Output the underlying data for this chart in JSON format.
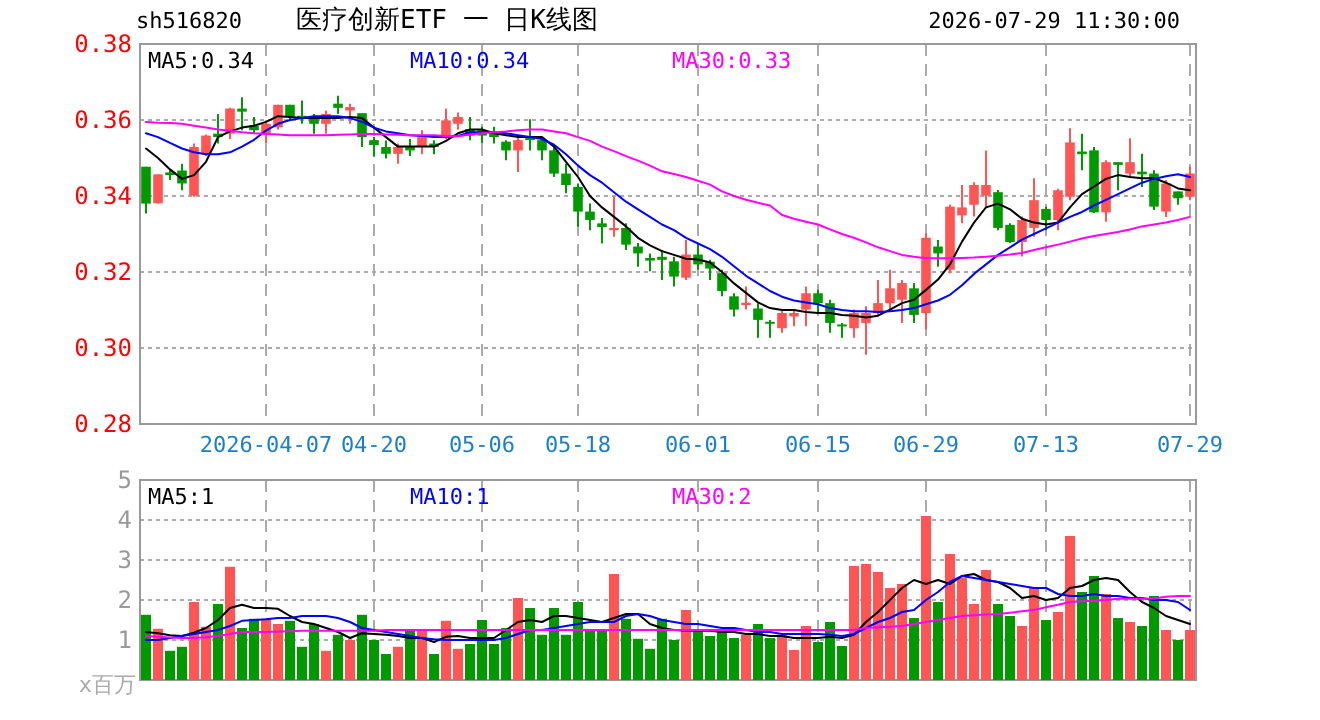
{
  "chart_data": [
    {
      "type": "candlestick",
      "title": "医疗创新ETF 一 日K线图",
      "annotations": [
        "sh516820",
        "2026-07-29 11:30:00"
      ],
      "categories": [
        null,
        null,
        null,
        null,
        null,
        null,
        null,
        null,
        null,
        null,
        "2026-04-07",
        null,
        null,
        null,
        null,
        null,
        null,
        null,
        null,
        "04-20",
        null,
        null,
        null,
        null,
        null,
        null,
        null,
        null,
        "05-06",
        null,
        null,
        null,
        null,
        null,
        null,
        null,
        "05-18",
        null,
        null,
        null,
        null,
        null,
        null,
        null,
        null,
        null,
        "06-01",
        null,
        null,
        null,
        null,
        null,
        null,
        null,
        null,
        null,
        "06-15",
        null,
        null,
        null,
        null,
        null,
        null,
        null,
        null,
        "06-29",
        null,
        null,
        null,
        null,
        null,
        null,
        null,
        null,
        null,
        "07-13",
        null,
        null,
        null,
        null,
        null,
        null,
        null,
        null,
        null,
        null,
        null,
        "07-29"
      ],
      "ohlc": [
        [
          0.3477,
          0.3477,
          0.3354,
          0.338
        ],
        [
          0.3381,
          0.3457,
          0.338,
          0.3457
        ],
        [
          0.3462,
          0.3469,
          0.3442,
          0.3455
        ],
        [
          0.3467,
          0.3485,
          0.3415,
          0.3433
        ],
        [
          0.3401,
          0.3538,
          0.3398,
          0.3529
        ],
        [
          0.3511,
          0.3562,
          0.3505,
          0.3559
        ],
        [
          0.3564,
          0.3616,
          0.3538,
          0.3555
        ],
        [
          0.3564,
          0.3632,
          0.355,
          0.363
        ],
        [
          0.363,
          0.366,
          0.3573,
          0.3622
        ],
        [
          0.3585,
          0.3608,
          0.3564,
          0.3573
        ],
        [
          0.3564,
          0.3599,
          0.3538,
          0.359
        ],
        [
          0.3581,
          0.364,
          0.3575,
          0.364
        ],
        [
          0.364,
          0.364,
          0.36,
          0.3608
        ],
        [
          0.3611,
          0.3651,
          0.359,
          0.3603
        ],
        [
          0.3608,
          0.3616,
          0.3564,
          0.359
        ],
        [
          0.359,
          0.3625,
          0.3564,
          0.3616
        ],
        [
          0.3643,
          0.3664,
          0.3616,
          0.3632
        ],
        [
          0.3625,
          0.3643,
          0.359,
          0.3634
        ],
        [
          0.3618,
          0.3618,
          0.3529,
          0.3555
        ],
        [
          0.3547,
          0.3555,
          0.3503,
          0.3534
        ],
        [
          0.3529,
          0.3546,
          0.3499,
          0.3511
        ],
        [
          0.3511,
          0.3538,
          0.3485,
          0.3529
        ],
        [
          0.3529,
          0.355,
          0.3505,
          0.352
        ],
        [
          0.3529,
          0.3573,
          0.351,
          0.3555
        ],
        [
          0.3538,
          0.3547,
          0.351,
          0.3529
        ],
        [
          0.3555,
          0.363,
          0.355,
          0.3599
        ],
        [
          0.359,
          0.362,
          0.3575,
          0.3608
        ],
        [
          0.3576,
          0.3608,
          0.3547,
          0.3559
        ],
        [
          0.3573,
          0.3582,
          0.3538,
          0.3559
        ],
        [
          0.3569,
          0.3582,
          0.3538,
          0.3555
        ],
        [
          0.3543,
          0.3547,
          0.3494,
          0.352
        ],
        [
          0.352,
          0.3555,
          0.3463,
          0.3547
        ],
        [
          0.3555,
          0.3602,
          0.352,
          0.3547
        ],
        [
          0.3547,
          0.3555,
          0.3494,
          0.352
        ],
        [
          0.352,
          0.3529,
          0.345,
          0.3459
        ],
        [
          0.3459,
          0.3485,
          0.3407,
          0.3429
        ],
        [
          0.3424,
          0.3433,
          0.3319,
          0.3359
        ],
        [
          0.3359,
          0.338,
          0.331,
          0.3337
        ],
        [
          0.3328,
          0.3342,
          0.3275,
          0.3318
        ],
        [
          0.331,
          0.3398,
          0.3293,
          0.3316
        ],
        [
          0.3316,
          0.3328,
          0.3258,
          0.3272
        ],
        [
          0.3267,
          0.3276,
          0.3214,
          0.3249
        ],
        [
          0.3237,
          0.3249,
          0.3202,
          0.323
        ],
        [
          0.324,
          0.3258,
          0.3179,
          0.3232
        ],
        [
          0.3228,
          0.324,
          0.3162,
          0.3188
        ],
        [
          0.3185,
          0.3284,
          0.3179,
          0.3246
        ],
        [
          0.3246,
          0.3276,
          0.3206,
          0.322
        ],
        [
          0.3227,
          0.3232,
          0.3179,
          0.3209
        ],
        [
          0.3197,
          0.3206,
          0.3136,
          0.315
        ],
        [
          0.3136,
          0.3144,
          0.3083,
          0.3101
        ],
        [
          0.3113,
          0.3162,
          0.3101,
          0.3119
        ],
        [
          0.3104,
          0.3118,
          0.3027,
          0.3074
        ],
        [
          0.3069,
          0.3074,
          0.3027,
          0.3066
        ],
        [
          0.3052,
          0.3101,
          0.304,
          0.3092
        ],
        [
          0.3083,
          0.3101,
          0.3057,
          0.3092
        ],
        [
          0.3101,
          0.3162,
          0.3057,
          0.3144
        ],
        [
          0.3144,
          0.3153,
          0.3092,
          0.3118
        ],
        [
          0.3118,
          0.3127,
          0.304,
          0.3066
        ],
        [
          0.3062,
          0.3066,
          0.3027,
          0.3057
        ],
        [
          0.3052,
          0.3101,
          0.3027,
          0.3092
        ],
        [
          0.3066,
          0.311,
          0.2982,
          0.3092
        ],
        [
          0.3092,
          0.3179,
          0.3083,
          0.3118
        ],
        [
          0.3118,
          0.3206,
          0.3101,
          0.3157
        ],
        [
          0.3127,
          0.3179,
          0.3066,
          0.3171
        ],
        [
          0.3157,
          0.3171,
          0.3066,
          0.3087
        ],
        [
          0.3092,
          0.3302,
          0.3049,
          0.329
        ],
        [
          0.3267,
          0.3284,
          0.3214,
          0.3249
        ],
        [
          0.3206,
          0.3377,
          0.3197,
          0.3372
        ],
        [
          0.3349,
          0.3429,
          0.3328,
          0.337
        ],
        [
          0.3377,
          0.3436,
          0.3346,
          0.3429
        ],
        [
          0.3401,
          0.352,
          0.3372,
          0.3429
        ],
        [
          0.341,
          0.3416,
          0.331,
          0.3316
        ],
        [
          0.3324,
          0.3328,
          0.3276,
          0.3279
        ],
        [
          0.3279,
          0.3346,
          0.3241,
          0.3337
        ],
        [
          0.3316,
          0.3447,
          0.3293,
          0.3389
        ],
        [
          0.3366,
          0.3372,
          0.331,
          0.3337
        ],
        [
          0.3337,
          0.3419,
          0.331,
          0.3415
        ],
        [
          0.3398,
          0.3578,
          0.3389,
          0.3541
        ],
        [
          0.3517,
          0.3564,
          0.3468,
          0.351
        ],
        [
          0.352,
          0.3529,
          0.3355,
          0.3357
        ],
        [
          0.3357,
          0.3494,
          0.3332,
          0.3489
        ],
        [
          0.3489,
          0.3489,
          0.3415,
          0.3482
        ],
        [
          0.3459,
          0.3552,
          0.345,
          0.3489
        ],
        [
          0.3464,
          0.3511,
          0.3424,
          0.3457
        ],
        [
          0.3459,
          0.3468,
          0.3363,
          0.3372
        ],
        [
          0.3359,
          0.3442,
          0.3345,
          0.3433
        ],
        [
          0.3412,
          0.3412,
          0.3377,
          0.3394
        ],
        [
          0.3398,
          0.3477,
          0.3389,
          0.3459
        ]
      ],
      "colors": [
        "#009900",
        "#ff5555",
        "#009900",
        "#009900",
        "#ff5555",
        "#ff5555",
        "#009900",
        "#ff5555",
        "#009900",
        "#009900",
        "#ff5555",
        "#ff5555",
        "#009900",
        "#009900",
        "#009900",
        "#ff5555",
        "#009900",
        "#ff5555",
        "#009900",
        "#009900",
        "#009900",
        "#ff5555",
        "#009900",
        "#ff5555",
        "#009900",
        "#ff5555",
        "#ff5555",
        "#009900",
        "#009900",
        "#009900",
        "#009900",
        "#ff5555",
        "#009900",
        "#009900",
        "#009900",
        "#009900",
        "#009900",
        "#009900",
        "#009900",
        "#ff5555",
        "#009900",
        "#009900",
        "#009900",
        "#009900",
        "#009900",
        "#ff5555",
        "#009900",
        "#009900",
        "#009900",
        "#009900",
        "#ff5555",
        "#009900",
        "#009900",
        "#ff5555",
        "#ff5555",
        "#ff5555",
        "#009900",
        "#009900",
        "#009900",
        "#ff5555",
        "#ff5555",
        "#ff5555",
        "#ff5555",
        "#ff5555",
        "#009900",
        "#ff5555",
        "#009900",
        "#ff5555",
        "#ff5555",
        "#ff5555",
        "#ff5555",
        "#009900",
        "#009900",
        "#ff5555",
        "#ff5555",
        "#009900",
        "#ff5555",
        "#ff5555",
        "#009900",
        "#009900",
        "#ff5555",
        "#009900",
        "#ff5555",
        "#009900",
        "#009900",
        "#ff5555",
        "#009900",
        "#ff5555"
      ],
      "series": [
        {
          "type": "line",
          "name": "MA5:0.34",
          "color": "#000000",
          "values": [
            0.3525,
            0.35,
            0.347,
            0.3445,
            0.3455,
            0.349,
            0.3555,
            0.357,
            0.358,
            0.3585,
            0.3595,
            0.361,
            0.3608,
            0.3605,
            0.3605,
            0.3605,
            0.3605,
            0.3608,
            0.3605,
            0.358,
            0.3555,
            0.353,
            0.353,
            0.353,
            0.353,
            0.3545,
            0.3565,
            0.3575,
            0.3575,
            0.3565,
            0.356,
            0.3555,
            0.3555,
            0.3555,
            0.353,
            0.349,
            0.345,
            0.34,
            0.337,
            0.3345,
            0.332,
            0.329,
            0.327,
            0.3255,
            0.3245,
            0.3235,
            0.3233,
            0.3225,
            0.32,
            0.317,
            0.3145,
            0.312,
            0.3105,
            0.31,
            0.31,
            0.3095,
            0.3092,
            0.3092,
            0.3087,
            0.3085,
            0.308,
            0.3085,
            0.3101,
            0.3118,
            0.3127,
            0.3153,
            0.318,
            0.322,
            0.328,
            0.333,
            0.337,
            0.338,
            0.3365,
            0.334,
            0.333,
            0.3325,
            0.333,
            0.337,
            0.3405,
            0.3425,
            0.3445,
            0.3455,
            0.345,
            0.3447,
            0.3447,
            0.3435,
            0.342,
            0.3415
          ]
        },
        {
          "type": "line",
          "name": "MA10:0.34",
          "color": "#0000ff",
          "values": [
            0.3565,
            0.3555,
            0.354,
            0.3525,
            0.3515,
            0.351,
            0.351,
            0.3515,
            0.353,
            0.3548,
            0.3572,
            0.359,
            0.36,
            0.3605,
            0.361,
            0.361,
            0.361,
            0.3605,
            0.3595,
            0.358,
            0.357,
            0.3565,
            0.356,
            0.3558,
            0.3555,
            0.3555,
            0.3558,
            0.3568,
            0.3568,
            0.3568,
            0.3565,
            0.356,
            0.3555,
            0.355,
            0.3535,
            0.351,
            0.348,
            0.3455,
            0.3435,
            0.341,
            0.3385,
            0.3365,
            0.3345,
            0.3325,
            0.331,
            0.329,
            0.3275,
            0.326,
            0.324,
            0.3215,
            0.319,
            0.317,
            0.315,
            0.3135,
            0.3125,
            0.312,
            0.3115,
            0.3105,
            0.31,
            0.3097,
            0.3097,
            0.3095,
            0.3097,
            0.31,
            0.3105,
            0.3115,
            0.3125,
            0.314,
            0.3165,
            0.3195,
            0.322,
            0.3245,
            0.3265,
            0.3285,
            0.33,
            0.3315,
            0.333,
            0.3345,
            0.3358,
            0.3375,
            0.339,
            0.3405,
            0.342,
            0.3435,
            0.3445,
            0.3452,
            0.3457,
            0.345
          ]
        },
        {
          "type": "line",
          "name": "MA30:0.33",
          "color": "#ff00ff",
          "values": [
            0.3595,
            0.3593,
            0.3592,
            0.359,
            0.3585,
            0.358,
            0.3575,
            0.3572,
            0.3568,
            0.3565,
            0.3563,
            0.3562,
            0.356,
            0.356,
            0.356,
            0.356,
            0.3561,
            0.3562,
            0.3563,
            0.3563,
            0.3562,
            0.3561,
            0.356,
            0.356,
            0.356,
            0.3558,
            0.3557,
            0.3562,
            0.3565,
            0.3568,
            0.357,
            0.3573,
            0.3575,
            0.3575,
            0.357,
            0.3565,
            0.3555,
            0.3545,
            0.353,
            0.3518,
            0.3505,
            0.3493,
            0.348,
            0.3465,
            0.3458,
            0.345,
            0.344,
            0.343,
            0.3412,
            0.34,
            0.339,
            0.3382,
            0.3375,
            0.335,
            0.334,
            0.3332,
            0.3325,
            0.3312,
            0.33,
            0.329,
            0.3278,
            0.3265,
            0.3255,
            0.3245,
            0.324,
            0.3236,
            0.3236,
            0.3236,
            0.3237,
            0.3238,
            0.324,
            0.3243,
            0.3246,
            0.325,
            0.3258,
            0.3265,
            0.3272,
            0.328,
            0.3288,
            0.3295,
            0.33,
            0.3305,
            0.3312,
            0.332,
            0.3325,
            0.333,
            0.3337,
            0.3345
          ]
        }
      ],
      "ylim": [
        0.28,
        0.38
      ],
      "yticks": [
        {
          "value": 0.28,
          "label": "0.28"
        },
        {
          "value": 0.3,
          "label": "0.30"
        },
        {
          "value": 0.32,
          "label": "0.32"
        },
        {
          "value": 0.34,
          "label": "0.34"
        },
        {
          "value": 0.36,
          "label": "0.36"
        },
        {
          "value": 0.38,
          "label": "0.38"
        }
      ],
      "grid": true,
      "legend": "top left"
    },
    {
      "type": "bar",
      "ylabel": "x百万",
      "categories": [
        null,
        null,
        null,
        null,
        null,
        null,
        null,
        null,
        null,
        null,
        null,
        null,
        null,
        null,
        null,
        null,
        null,
        null,
        null,
        null,
        null,
        null,
        null,
        null,
        null,
        null,
        null,
        null,
        null,
        null,
        null,
        null,
        null,
        null,
        null,
        null,
        null,
        null,
        null,
        null,
        null,
        null,
        null,
        null,
        null,
        null,
        null,
        null,
        null,
        null,
        null,
        null,
        null,
        null,
        null,
        null,
        null,
        null,
        null,
        null,
        null,
        null,
        null,
        null,
        null,
        null,
        null,
        null,
        null,
        null,
        null,
        null,
        null,
        null,
        null,
        null,
        null,
        null,
        null,
        null,
        null,
        null,
        null,
        null,
        null,
        null,
        null,
        null
      ],
      "tick_labels": "y",
      "series": [
        {
          "type": "bar",
          "colors": [
            "#009900",
            "#ff5555",
            "#009900",
            "#009900",
            "#ff5555",
            "#ff5555",
            "#009900",
            "#ff5555",
            "#009900",
            "#009900",
            "#ff5555",
            "#ff5555",
            "#009900",
            "#009900",
            "#009900",
            "#ff5555",
            "#009900",
            "#ff5555",
            "#009900",
            "#009900",
            "#009900",
            "#ff5555",
            "#009900",
            "#ff5555",
            "#009900",
            "#ff5555",
            "#ff5555",
            "#009900",
            "#009900",
            "#009900",
            "#009900",
            "#ff5555",
            "#009900",
            "#009900",
            "#009900",
            "#009900",
            "#009900",
            "#009900",
            "#009900",
            "#ff5555",
            "#009900",
            "#009900",
            "#009900",
            "#009900",
            "#009900",
            "#ff5555",
            "#009900",
            "#009900",
            "#009900",
            "#009900",
            "#ff5555",
            "#009900",
            "#009900",
            "#ff5555",
            "#ff5555",
            "#ff5555",
            "#009900",
            "#009900",
            "#009900",
            "#ff5555",
            "#ff5555",
            "#ff5555",
            "#ff5555",
            "#ff5555",
            "#009900",
            "#ff5555",
            "#009900",
            "#ff5555",
            "#ff5555",
            "#ff5555",
            "#ff5555",
            "#009900",
            "#009900",
            "#ff5555",
            "#ff5555",
            "#009900",
            "#ff5555",
            "#ff5555",
            "#009900",
            "#009900",
            "#ff5555",
            "#009900",
            "#ff5555",
            "#009900",
            "#009900",
            "#ff5555",
            "#009900",
            "#ff5555"
          ],
          "values": [
            1.63,
            1.28,
            0.73,
            0.83,
            1.95,
            1.33,
            1.9,
            2.83,
            1.3,
            1.53,
            1.53,
            1.4,
            1.48,
            0.83,
            1.4,
            0.73,
            1.13,
            1.0,
            1.63,
            1.0,
            0.65,
            0.83,
            1.23,
            1.23,
            0.65,
            1.48,
            0.78,
            0.9,
            1.5,
            0.9,
            1.3,
            2.05,
            1.8,
            1.13,
            1.8,
            1.13,
            1.95,
            1.23,
            1.23,
            2.65,
            1.53,
            1.03,
            0.78,
            1.53,
            1.0,
            1.75,
            1.23,
            1.1,
            1.25,
            1.05,
            1.13,
            1.4,
            1.05,
            1.13,
            0.75,
            1.35,
            0.95,
            1.45,
            0.85,
            2.85,
            2.9,
            2.7,
            2.3,
            2.4,
            1.55,
            4.1,
            1.95,
            3.15,
            2.55,
            1.9,
            2.75,
            1.9,
            1.6,
            1.35,
            2.3,
            1.5,
            1.7,
            3.6,
            2.2,
            2.6,
            2.15,
            1.55,
            1.45,
            1.35,
            2.1,
            1.25,
            1.0,
            1.25
          ]
        },
        {
          "type": "line",
          "name": "MA5:1",
          "color": "#000000",
          "values": [
            1.2,
            1.17,
            1.12,
            1.1,
            1.18,
            1.3,
            1.5,
            1.8,
            1.88,
            1.8,
            1.8,
            1.78,
            1.6,
            1.45,
            1.4,
            1.3,
            1.2,
            1.05,
            1.17,
            1.15,
            1.13,
            1.1,
            1.05,
            1.05,
            0.95,
            1.08,
            1.1,
            1.05,
            1.05,
            1.05,
            1.25,
            1.45,
            1.5,
            1.45,
            1.6,
            1.6,
            1.55,
            1.5,
            1.45,
            1.55,
            1.65,
            1.65,
            1.4,
            1.3,
            1.25,
            1.23,
            1.23,
            1.23,
            1.2,
            1.2,
            1.15,
            1.15,
            1.1,
            1.1,
            1.05,
            1.05,
            1.05,
            1.08,
            1.05,
            1.13,
            1.45,
            1.7,
            2.0,
            2.3,
            2.5,
            2.4,
            2.5,
            2.4,
            2.6,
            2.65,
            2.5,
            2.45,
            2.3,
            2.05,
            2.1,
            2.0,
            2.05,
            2.3,
            2.35,
            2.5,
            2.55,
            2.5,
            2.2,
            1.95,
            1.8,
            1.6,
            1.5,
            1.4
          ]
        },
        {
          "type": "line",
          "name": "MA10:1",
          "color": "#0000ff",
          "values": [
            1.0,
            1.0,
            1.05,
            1.1,
            1.15,
            1.2,
            1.25,
            1.35,
            1.48,
            1.5,
            1.52,
            1.55,
            1.55,
            1.6,
            1.6,
            1.6,
            1.55,
            1.45,
            1.3,
            1.25,
            1.2,
            1.15,
            1.1,
            1.05,
            1.02,
            1.0,
            1.0,
            1.0,
            1.0,
            1.0,
            1.05,
            1.15,
            1.25,
            1.25,
            1.3,
            1.35,
            1.4,
            1.45,
            1.45,
            1.45,
            1.6,
            1.65,
            1.6,
            1.5,
            1.45,
            1.4,
            1.4,
            1.35,
            1.3,
            1.3,
            1.25,
            1.2,
            1.2,
            1.15,
            1.15,
            1.15,
            1.15,
            1.13,
            1.1,
            1.15,
            1.3,
            1.45,
            1.55,
            1.7,
            1.75,
            2.0,
            2.2,
            2.45,
            2.6,
            2.55,
            2.5,
            2.45,
            2.4,
            2.35,
            2.3,
            2.3,
            2.15,
            2.1,
            2.1,
            2.15,
            2.1,
            2.1,
            2.05,
            2.05,
            2.0,
            2.0,
            1.95,
            1.75
          ]
        },
        {
          "type": "line",
          "name": "MA30:2",
          "color": "#ff00ff",
          "values": [
            1.1,
            1.08,
            1.06,
            1.05,
            1.05,
            1.07,
            1.1,
            1.15,
            1.2,
            1.2,
            1.2,
            1.21,
            1.22,
            1.23,
            1.23,
            1.23,
            1.23,
            1.23,
            1.23,
            1.23,
            1.25,
            1.25,
            1.25,
            1.25,
            1.25,
            1.25,
            1.25,
            1.25,
            1.25,
            1.25,
            1.25,
            1.25,
            1.25,
            1.25,
            1.25,
            1.25,
            1.25,
            1.25,
            1.25,
            1.25,
            1.25,
            1.25,
            1.25,
            1.25,
            1.25,
            1.25,
            1.25,
            1.25,
            1.25,
            1.25,
            1.25,
            1.25,
            1.25,
            1.25,
            1.25,
            1.25,
            1.25,
            1.25,
            1.25,
            1.25,
            1.3,
            1.32,
            1.33,
            1.35,
            1.4,
            1.45,
            1.5,
            1.55,
            1.6,
            1.62,
            1.64,
            1.65,
            1.68,
            1.72,
            1.75,
            1.82,
            1.88,
            1.95,
            1.97,
            1.98,
            2.0,
            2.03,
            2.03,
            2.03,
            2.04,
            2.08,
            2.1,
            2.1
          ]
        }
      ],
      "ylim": [
        0,
        5
      ],
      "yticks": [
        1,
        2,
        3,
        4,
        5
      ],
      "grid": true,
      "legend": "top left"
    }
  ]
}
